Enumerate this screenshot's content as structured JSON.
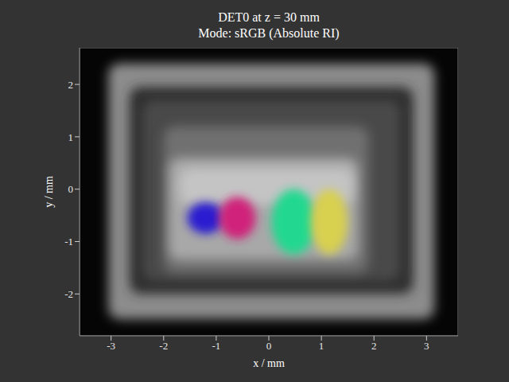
{
  "chart_data": {
    "type": "image",
    "title": "DET0 at z = 30 mm",
    "subtitle": "Mode: sRGB (Absolute RI)",
    "x_label": "x / mm",
    "y_label": "y / mm",
    "xlim": [
      -3.6,
      3.6
    ],
    "ylim": [
      -2.8,
      2.7
    ],
    "xticks": [
      -3,
      -2,
      -1,
      0,
      1,
      2,
      3
    ],
    "yticks": [
      -2,
      -1,
      0,
      1,
      2
    ],
    "grid": false,
    "background": "#050505",
    "rects": [
      {
        "x": [
          -3.05,
          3.15
        ],
        "y": [
          -2.48,
          2.4
        ],
        "color": "#8c8c8c"
      },
      {
        "x": [
          -2.65,
          2.75
        ],
        "y": [
          -2.0,
          1.95
        ],
        "color": "#2e2e2e"
      },
      {
        "x": [
          -2.4,
          2.5
        ],
        "y": [
          -1.75,
          1.7
        ],
        "color": "#4a4a4a"
      },
      {
        "x": [
          -2.0,
          1.9
        ],
        "y": [
          -1.6,
          1.2
        ],
        "color": "#707070"
      },
      {
        "x": [
          -1.9,
          1.7
        ],
        "y": [
          -1.35,
          0.6
        ],
        "color": "#a8a8a8"
      },
      {
        "x": [
          -1.7,
          1.6
        ],
        "y": [
          -0.3,
          0.4
        ],
        "color": "#c4c4c4"
      }
    ],
    "ellipses": [
      {
        "x": [
          -1.55,
          -0.85
        ],
        "y": [
          -0.85,
          -0.25
        ],
        "color": "#2a1fd0"
      },
      {
        "x": [
          -0.95,
          -0.25
        ],
        "y": [
          -0.95,
          -0.15
        ],
        "color": "#d0207a"
      },
      {
        "x": [
          0.05,
          0.9
        ],
        "y": [
          -1.25,
          0.0
        ],
        "color": "#20d890"
      },
      {
        "x": [
          0.8,
          1.5
        ],
        "y": [
          -1.25,
          0.0
        ],
        "color": "#d8d050"
      }
    ]
  }
}
